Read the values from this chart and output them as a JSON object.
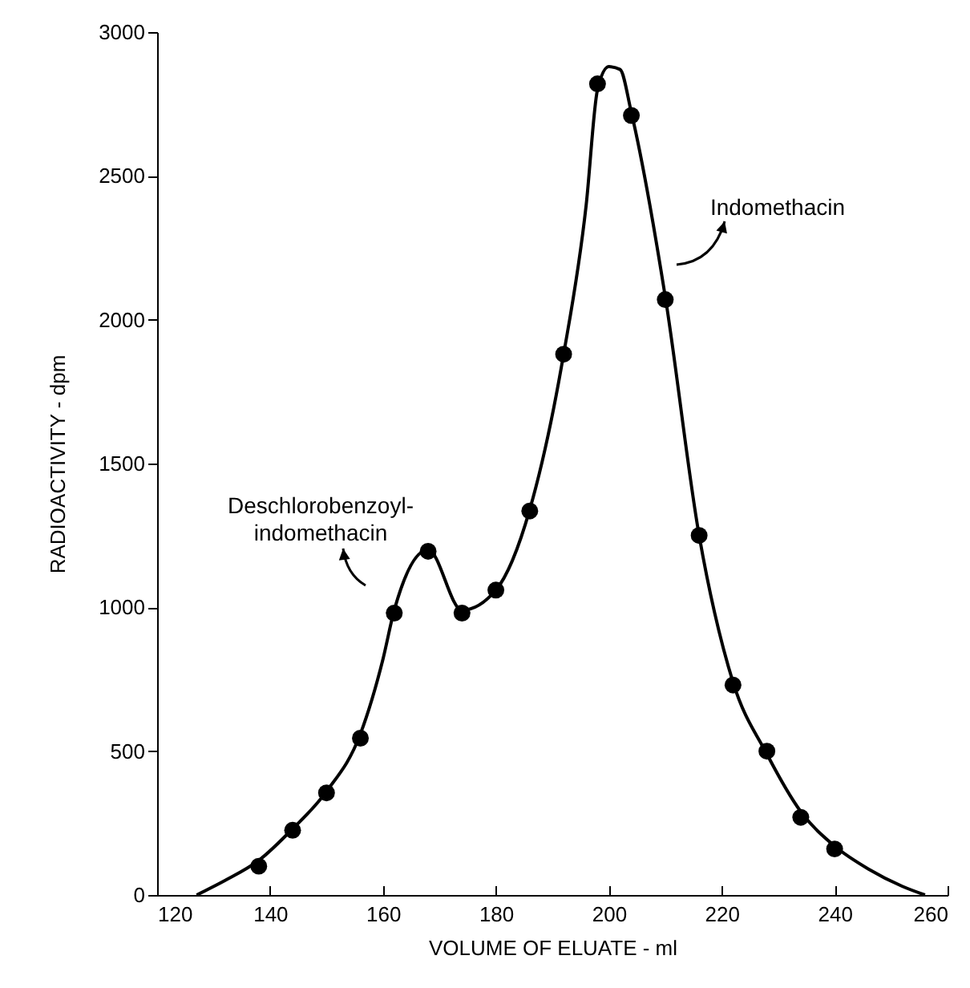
{
  "chart_data": {
    "type": "scatter",
    "xlabel": "VOLUME OF ELUATE - ml",
    "ylabel": "RADIOACTIVITY - dpm",
    "xlim": [
      120,
      260
    ],
    "xticks": [
      120,
      140,
      160,
      180,
      200,
      220,
      240,
      260
    ],
    "ylim": [
      0,
      3000
    ],
    "yticks": [
      0,
      500,
      1000,
      1500,
      2000,
      2500,
      3000
    ],
    "grid": false,
    "marker": "circle",
    "annotations": [
      "Deschlorobenzoyl-\nindomethacin",
      "Indomethacin"
    ],
    "series": [
      {
        "color": "#000000",
        "x": [
          138,
          144,
          150,
          156,
          162,
          168,
          174,
          180,
          186,
          192,
          198,
          204,
          210,
          216,
          222,
          228,
          234,
          240
        ],
        "values": [
          100,
          225,
          355,
          545,
          980,
          1195,
          980,
          1060,
          1335,
          1880,
          2820,
          2710,
          2070,
          1250,
          730,
          500,
          270,
          160
        ]
      },
      {
        "type": "line",
        "color": "#000000",
        "marker": "none",
        "x": [
          127,
          132,
          138,
          144,
          150,
          156,
          160,
          162,
          168,
          174,
          180,
          186,
          192,
          196,
          198,
          200,
          202,
          204,
          210,
          216,
          222,
          228,
          234,
          240,
          246,
          252,
          256
        ],
        "values": [
          0,
          50,
          120,
          230,
          360,
          560,
          820,
          990,
          1200,
          990,
          1060,
          1340,
          1880,
          2400,
          2800,
          2880,
          2870,
          2720,
          2080,
          1250,
          740,
          490,
          290,
          170,
          90,
          30,
          0
        ]
      }
    ]
  }
}
